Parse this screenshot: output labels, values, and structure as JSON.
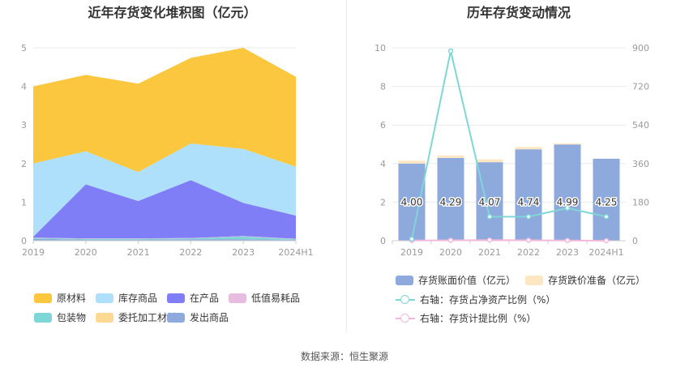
{
  "left_chart": {
    "title": "近年存货变化堆积图（亿元）",
    "legend": [
      {
        "name": "原材料",
        "color": "#fbc73f"
      },
      {
        "name": "库存商品",
        "color": "#aee0fb"
      },
      {
        "name": "在产品",
        "color": "#7f7ef6"
      },
      {
        "name": "低值易耗品",
        "color": "#e8bbe0"
      },
      {
        "name": "包装物",
        "color": "#7fd6d6"
      },
      {
        "name": "委托加工材料",
        "color": "#fdd994"
      },
      {
        "name": "发出商品",
        "color": "#8eaadc"
      }
    ]
  },
  "right_chart": {
    "title": "历年存货变动情况",
    "legend": {
      "bar1": {
        "name": "存货账面价值（亿元）",
        "color": "#8eaadc"
      },
      "bar2": {
        "name": "存货跌价准备（亿元）",
        "color": "#fde7c3"
      },
      "line1": {
        "name": "右轴：存货占净资产比例（%）",
        "color": "#7fd6d6"
      },
      "line2": {
        "name": "右轴：存货计提比例（%）",
        "color": "#f2b8dc"
      }
    }
  },
  "source": "数据来源：恒生聚源",
  "chart_data": [
    {
      "type": "area",
      "stacked": true,
      "title": "近年存货变化堆积图（亿元）",
      "x": [
        "2019",
        "2020",
        "2021",
        "2022",
        "2023",
        "2024H1"
      ],
      "ylim": [
        0,
        5
      ],
      "yticks": [
        0,
        1,
        2,
        3,
        4,
        5
      ],
      "series": [
        {
          "name": "发出商品",
          "color": "#8eaadc",
          "values": [
            0.05,
            0.03,
            0.03,
            0.04,
            0.04,
            0.02
          ]
        },
        {
          "name": "包装物",
          "color": "#7fd6d6",
          "values": [
            0.02,
            0.02,
            0.02,
            0.02,
            0.07,
            0.02
          ]
        },
        {
          "name": "低值易耗品",
          "color": "#e8bbe0",
          "values": [
            0.01,
            0.01,
            0.01,
            0.01,
            0.01,
            0.01
          ]
        },
        {
          "name": "委托加工材料",
          "color": "#fdd994",
          "values": [
            0.0,
            0.0,
            0.0,
            0.0,
            0.0,
            0.0
          ]
        },
        {
          "name": "在产品",
          "color": "#7f7ef6",
          "values": [
            0.02,
            1.4,
            0.97,
            1.5,
            0.86,
            0.6
          ]
        },
        {
          "name": "库存商品",
          "color": "#aee0fb",
          "values": [
            1.9,
            0.86,
            0.75,
            0.95,
            1.4,
            1.27
          ]
        },
        {
          "name": "原材料",
          "color": "#fbc73f",
          "values": [
            2.0,
            1.98,
            2.29,
            2.22,
            2.62,
            2.33
          ]
        }
      ]
    },
    {
      "type": "bar",
      "stacked": true,
      "title": "历年存货变动情况",
      "categories": [
        "2019",
        "2020",
        "2021",
        "2022",
        "2023",
        "2024H1"
      ],
      "ylim": [
        0,
        10
      ],
      "yticks": [
        0,
        2,
        4,
        6,
        8,
        10
      ],
      "y2lim": [
        0,
        900
      ],
      "y2ticks": [
        0,
        180,
        360,
        540,
        720,
        900
      ],
      "series": [
        {
          "name": "存货账面价值（亿元）",
          "axis": "left",
          "type": "bar",
          "values": [
            4.0,
            4.29,
            4.07,
            4.74,
            4.99,
            4.25
          ],
          "labels": [
            "4.00",
            "4.29",
            "4.07",
            "4.74",
            "4.99",
            "4.25"
          ]
        },
        {
          "name": "存货跌价准备（亿元）",
          "axis": "left",
          "type": "bar",
          "values": [
            0.15,
            0.13,
            0.15,
            0.12,
            0.06,
            0.0
          ]
        },
        {
          "name": "右轴：存货占净资产比例（%）",
          "axis": "right",
          "type": "line",
          "values": [
            8,
            885,
            112,
            112,
            152,
            112
          ]
        },
        {
          "name": "右轴：存货计提比例（%）",
          "axis": "right",
          "type": "line",
          "values": [
            1,
            2,
            3,
            2,
            1,
            0
          ]
        }
      ]
    }
  ]
}
